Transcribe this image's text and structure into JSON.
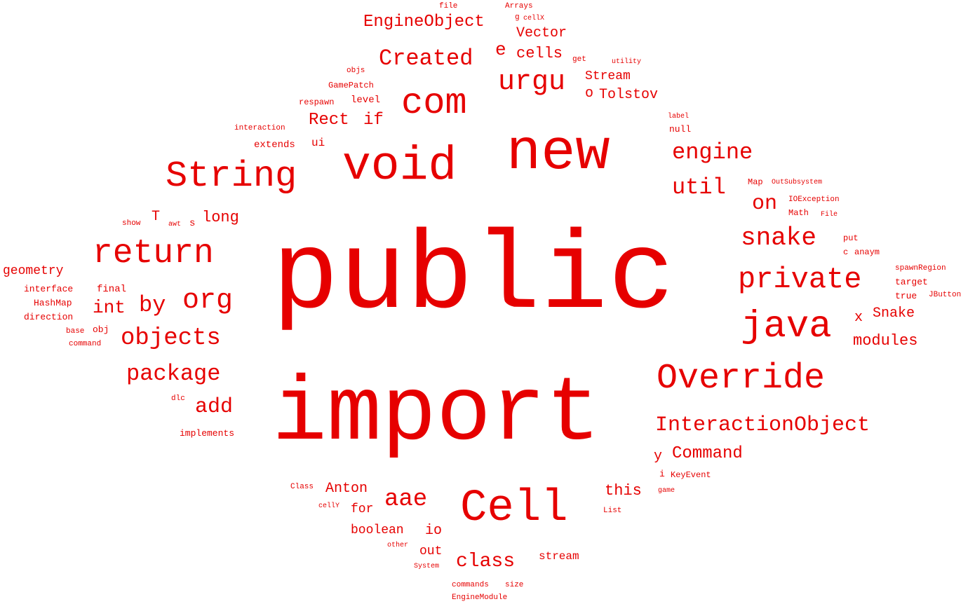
{
  "cloud": {
    "color": "#e60000",
    "words": [
      {
        "text": "public"
      },
      {
        "text": "import"
      },
      {
        "text": "new"
      },
      {
        "text": "void"
      },
      {
        "text": "String"
      },
      {
        "text": "com"
      },
      {
        "text": "Cell"
      },
      {
        "text": "return"
      },
      {
        "text": "Override"
      },
      {
        "text": "java"
      },
      {
        "text": "private"
      },
      {
        "text": "urgu"
      },
      {
        "text": "Created"
      },
      {
        "text": "org"
      },
      {
        "text": "objects"
      },
      {
        "text": "snake"
      },
      {
        "text": "engine"
      },
      {
        "text": "util"
      },
      {
        "text": "InteractionObject"
      },
      {
        "text": "package"
      },
      {
        "text": "add"
      },
      {
        "text": "by"
      },
      {
        "text": "int"
      },
      {
        "text": "class"
      },
      {
        "text": "aae"
      },
      {
        "text": "EngineObject"
      },
      {
        "text": "Command"
      },
      {
        "text": "modules"
      },
      {
        "text": "on"
      },
      {
        "text": "cells"
      },
      {
        "text": "Vector"
      },
      {
        "text": "Tolstov"
      },
      {
        "text": "Stream"
      },
      {
        "text": "e"
      },
      {
        "text": "o"
      },
      {
        "text": "Rect"
      },
      {
        "text": "if"
      },
      {
        "text": "long"
      },
      {
        "text": "T"
      },
      {
        "text": "s"
      },
      {
        "text": "Snake"
      },
      {
        "text": "x"
      },
      {
        "text": "y"
      },
      {
        "text": "this"
      },
      {
        "text": "Anton"
      },
      {
        "text": "for"
      },
      {
        "text": "boolean"
      },
      {
        "text": "io"
      },
      {
        "text": "out"
      },
      {
        "text": "stream"
      },
      {
        "text": "geometry"
      },
      {
        "text": "final"
      },
      {
        "text": "interface"
      },
      {
        "text": "HashMap"
      },
      {
        "text": "direction"
      },
      {
        "text": "obj"
      },
      {
        "text": "base"
      },
      {
        "text": "command"
      },
      {
        "text": "dlc"
      },
      {
        "text": "implements"
      },
      {
        "text": "show"
      },
      {
        "text": "awt"
      },
      {
        "text": "extends"
      },
      {
        "text": "ui"
      },
      {
        "text": "interaction"
      },
      {
        "text": "respawn"
      },
      {
        "text": "level"
      },
      {
        "text": "GamePatch"
      },
      {
        "text": "objs"
      },
      {
        "text": "file"
      },
      {
        "text": "Arrays"
      },
      {
        "text": "g"
      },
      {
        "text": "cellX"
      },
      {
        "text": "get"
      },
      {
        "text": "utility"
      },
      {
        "text": "label"
      },
      {
        "text": "null"
      },
      {
        "text": "Map"
      },
      {
        "text": "OutSubsystem"
      },
      {
        "text": "IOException"
      },
      {
        "text": "Math"
      },
      {
        "text": "File"
      },
      {
        "text": "put"
      },
      {
        "text": "c"
      },
      {
        "text": "anaym"
      },
      {
        "text": "spawnRegion"
      },
      {
        "text": "target"
      },
      {
        "text": "true"
      },
      {
        "text": "JButton"
      },
      {
        "text": "i"
      },
      {
        "text": "KeyEvent"
      },
      {
        "text": "game"
      },
      {
        "text": "List"
      },
      {
        "text": "Class"
      },
      {
        "text": "cellY"
      },
      {
        "text": "other"
      },
      {
        "text": "System"
      },
      {
        "text": "commands"
      },
      {
        "text": "size"
      },
      {
        "text": "EngineModule"
      }
    ]
  }
}
